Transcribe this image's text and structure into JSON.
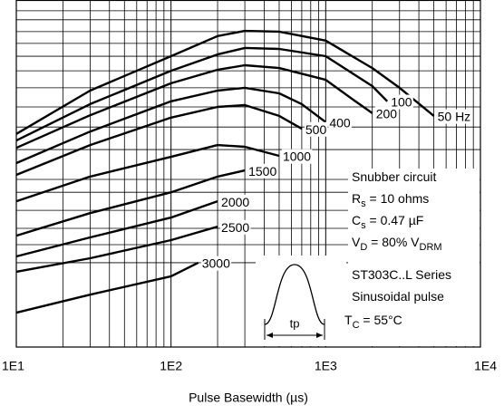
{
  "chart_data": {
    "type": "line",
    "xscale": "log",
    "xlabel": "Pulse Basewidth (µs)",
    "xlim": [
      10,
      10000
    ],
    "xticks": [
      {
        "value": 10,
        "label": "1E1"
      },
      {
        "value": 100,
        "label": "1E2"
      },
      {
        "value": 1000,
        "label": "1E3"
      },
      {
        "value": 10000,
        "label": "1E4"
      }
    ],
    "ylim": [
      0,
      100
    ],
    "ygrid": [
      96.9,
      94.3,
      90.9,
      87.5,
      83.8,
      79.6,
      74.7,
      69.2,
      63.4,
      56.9,
      48.3,
      44.6,
      39.4,
      34.2,
      29.5,
      24.3
    ],
    "grid": true,
    "series": [
      {
        "name": "50 Hz",
        "color": "#000000",
        "x": [
          10,
          30,
          100,
          200,
          300,
          500,
          1000,
          2000,
          3000,
          5000
        ],
        "values": [
          61.4,
          73.9,
          83.8,
          89.6,
          91.1,
          90.9,
          88.3,
          80.4,
          74.7,
          66.6
        ]
      },
      {
        "name": "100",
        "color": "#000000",
        "x": [
          10,
          30,
          100,
          200,
          300,
          500,
          1000,
          2000,
          2500
        ],
        "values": [
          59.5,
          70.0,
          79.6,
          84.3,
          86.2,
          85.9,
          83.8,
          75.2,
          70.8
        ]
      },
      {
        "name": "200",
        "color": "#000000",
        "x": [
          10,
          30,
          100,
          200,
          300,
          500,
          1000,
          1500,
          2000
        ],
        "values": [
          57.4,
          66.8,
          76.0,
          79.9,
          81.2,
          80.4,
          77.0,
          71.3,
          67.4
        ]
      },
      {
        "name": "400",
        "color": "#000000",
        "x": [
          10,
          30,
          100,
          200,
          300,
          500,
          700,
          1000
        ],
        "values": [
          53.0,
          62.1,
          70.8,
          73.9,
          74.7,
          73.1,
          70.0,
          64.8
        ]
      },
      {
        "name": "500",
        "color": "#000000",
        "x": [
          10,
          30,
          100,
          200,
          300,
          500,
          700
        ],
        "values": [
          49.6,
          58.2,
          66.1,
          69.2,
          69.7,
          66.6,
          62.9
        ]
      },
      {
        "name": "1000",
        "color": "#000000",
        "x": [
          10,
          30,
          100,
          200,
          300,
          500
        ],
        "values": [
          42.0,
          49.1,
          54.8,
          58.2,
          57.7,
          55.1
        ]
      },
      {
        "name": "1500",
        "color": "#000000",
        "x": [
          10,
          30,
          100,
          200,
          300
        ],
        "values": [
          32.1,
          38.6,
          44.6,
          49.1,
          50.9
        ]
      },
      {
        "name": "2000",
        "color": "#000000",
        "x": [
          10,
          30,
          100,
          200
        ],
        "values": [
          26.1,
          31.6,
          37.3,
          42.0
        ]
      },
      {
        "name": "2500",
        "color": "#000000",
        "x": [
          10,
          30,
          100,
          200
        ],
        "values": [
          21.7,
          25.6,
          30.8,
          34.7
        ]
      },
      {
        "name": "3000",
        "color": "#000000",
        "x": [
          10,
          30,
          100,
          150
        ],
        "values": [
          9.9,
          15.1,
          20.4,
          24.3
        ]
      }
    ],
    "notes": [
      [
        "Snubber circuit"
      ],
      [
        "R",
        "s",
        " = 10 ohms"
      ],
      [
        "C",
        "s",
        " = 0.47 µF"
      ],
      [
        "V",
        "D",
        " = 80% V",
        "DRM"
      ],
      [
        "ST303C..L Series"
      ],
      [
        "Sinusoidal pulse"
      ],
      [
        "T",
        "C",
        " = 55°C"
      ]
    ],
    "inset_label": "tp"
  }
}
